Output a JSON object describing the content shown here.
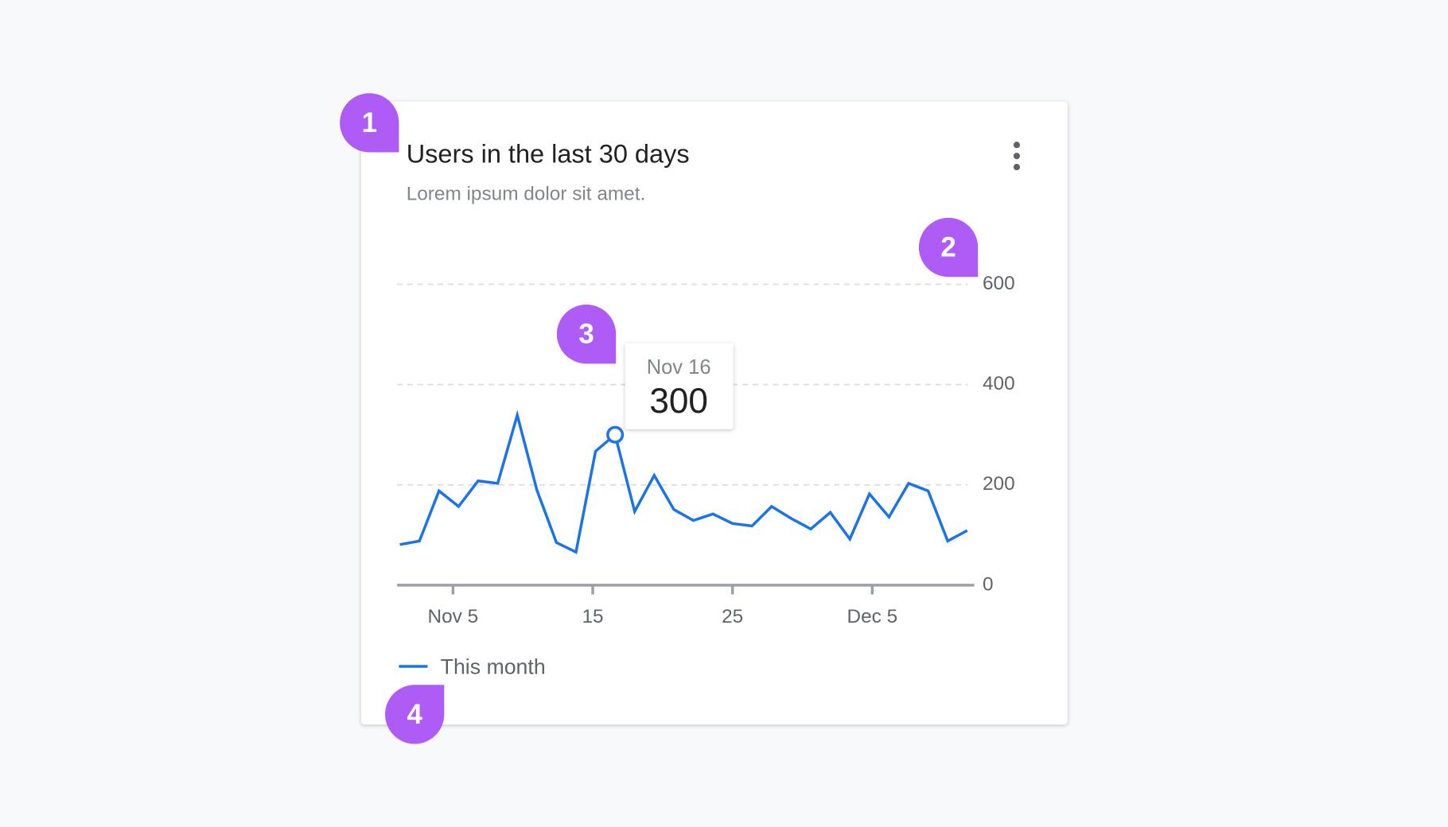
{
  "chart_data": {
    "type": "line",
    "title": "Users in the last 30 days",
    "subtitle": "Lorem ipsum dolor sit amet.",
    "x": [
      1.2,
      2.6,
      4.0,
      5.4,
      6.8,
      8.2,
      9.6,
      11.0,
      12.4,
      13.8,
      15.2,
      16.6,
      18.0,
      19.4,
      20.8,
      22.2,
      23.6,
      25.0,
      26.4,
      27.8,
      29.2,
      30.6,
      32.0,
      33.4,
      34.8,
      36.2,
      37.6,
      39.0,
      40.4,
      41.8
    ],
    "series": [
      {
        "name": "This month",
        "color": "#1a73e8",
        "values": [
          81,
          88,
          188,
          157,
          208,
          203,
          339,
          190,
          85,
          66,
          267,
          300,
          147,
          219,
          151,
          129,
          142,
          123,
          118,
          157,
          133,
          112,
          145,
          92,
          182,
          136,
          203,
          188,
          88,
          109
        ]
      }
    ],
    "xlim": [
      1.0,
      42.3
    ],
    "xticks": [
      {
        "value": 5,
        "label": "Nov 5"
      },
      15,
      25,
      {
        "value": 35,
        "label": "Dec 5"
      }
    ],
    "ylim": [
      0,
      600
    ],
    "yticks": [
      0,
      200,
      400,
      600
    ],
    "grid": true,
    "tooltip": {
      "x_label": "Nov 16",
      "value": 300
    },
    "annotations": [
      "1",
      "2",
      "3",
      "4"
    ]
  }
}
